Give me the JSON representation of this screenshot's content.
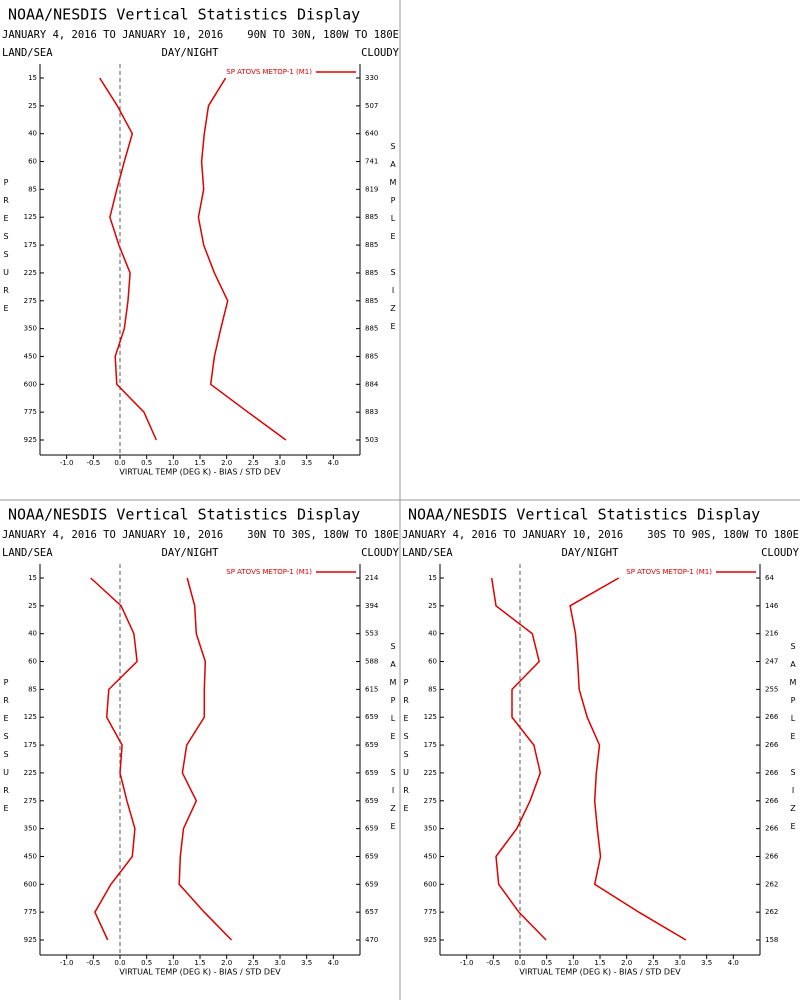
{
  "chart_data": [
    {
      "type": "line",
      "title": "NOAA/NESDIS Vertical Statistics Display",
      "date_range": "JANUARY 4, 2016 TO JANUARY 10, 2016",
      "region": "90N TO 30N, 180W TO 180E",
      "land_sea": "LAND/SEA",
      "day_night": "DAY/NIGHT",
      "cloudy": "CLOUDY",
      "y_label": "PRESSURE",
      "y2_label": "SAMPLE SIZE",
      "x_label": "VIRTUAL TEMP (DEG K) - BIAS / STD DEV",
      "categories": [
        15,
        25,
        40,
        60,
        85,
        125,
        175,
        225,
        275,
        350,
        450,
        600,
        775,
        925
      ],
      "sample_size": [
        330,
        507,
        640,
        741,
        819,
        885,
        885,
        885,
        885,
        885,
        885,
        884,
        883,
        503
      ],
      "series": [
        {
          "name": "SP ATOVS METOP-1 (M1)",
          "color": "#e00000",
          "bias": [
            -0.38,
            -0.05,
            0.23,
            0.08,
            -0.06,
            -0.19,
            -0.02,
            0.19,
            0.15,
            0.08,
            -0.09,
            -0.06,
            0.45,
            0.68
          ],
          "std_dev": [
            1.98,
            1.66,
            1.58,
            1.53,
            1.57,
            1.47,
            1.57,
            1.77,
            2.02,
            1.89,
            1.77,
            1.7,
            2.4,
            3.11
          ]
        }
      ],
      "xlim": [
        -1.5,
        4.5
      ],
      "xticks": [
        {
          "value": -1,
          "label": "-1.0"
        },
        -0.5,
        {
          "value": 0,
          "label": "0.0"
        },
        0.5,
        {
          "value": 1,
          "label": "1.0"
        },
        1.5,
        {
          "value": 2,
          "label": "2.0"
        },
        2.5,
        {
          "value": 3,
          "label": "3.0"
        },
        3.5,
        {
          "value": 4,
          "label": "4.0"
        }
      ]
    },
    {
      "type": "line",
      "title": "NOAA/NESDIS Vertical Statistics Display",
      "date_range": "JANUARY 4, 2016 TO JANUARY 10, 2016",
      "region": "30N TO 30S, 180W TO 180E",
      "land_sea": "LAND/SEA",
      "day_night": "DAY/NIGHT",
      "cloudy": "CLOUDY",
      "y_label": "PRESSURE",
      "y2_label": "SAMPLE SIZE",
      "x_label": "VIRTUAL TEMP (DEG K) - BIAS / STD DEV",
      "categories": [
        15,
        25,
        40,
        60,
        85,
        125,
        175,
        225,
        275,
        350,
        450,
        600,
        775,
        925
      ],
      "sample_size": [
        214,
        394,
        553,
        588,
        615,
        659,
        659,
        659,
        659,
        659,
        659,
        659,
        657,
        470
      ],
      "series": [
        {
          "name": "SP ATOVS METOP-1 (M1)",
          "color": "#e00000",
          "bias": [
            -0.55,
            0.02,
            0.26,
            0.32,
            -0.21,
            -0.25,
            0.04,
            0.0,
            0.13,
            0.28,
            0.23,
            -0.17,
            -0.47,
            -0.23
          ],
          "std_dev": [
            1.26,
            1.4,
            1.43,
            1.6,
            1.58,
            1.58,
            1.25,
            1.17,
            1.43,
            1.19,
            1.13,
            1.11,
            1.58,
            2.09
          ]
        }
      ],
      "xlim": [
        -1.5,
        4.5
      ],
      "xticks": [
        {
          "value": -1,
          "label": "-1.0"
        },
        -0.5,
        {
          "value": 0,
          "label": "0.0"
        },
        0.5,
        {
          "value": 1,
          "label": "1.0"
        },
        1.5,
        {
          "value": 2,
          "label": "2.0"
        },
        2.5,
        {
          "value": 3,
          "label": "3.0"
        },
        3.5,
        {
          "value": 4,
          "label": "4.0"
        }
      ]
    },
    {
      "type": "line",
      "title": "NOAA/NESDIS Vertical Statistics Display",
      "date_range": "JANUARY 4, 2016 TO JANUARY 10, 2016",
      "region": "30S TO 90S, 180W TO 180E",
      "land_sea": "LAND/SEA",
      "day_night": "DAY/NIGHT",
      "cloudy": "CLOUDY",
      "y_label": "PRESSURE",
      "y2_label": "SAMPLE SIZE",
      "x_label": "VIRTUAL TEMP (DEG K) - BIAS / STD DEV",
      "categories": [
        15,
        25,
        40,
        60,
        85,
        125,
        175,
        225,
        275,
        350,
        450,
        600,
        775,
        925
      ],
      "sample_size": [
        64,
        146,
        216,
        247,
        255,
        266,
        266,
        266,
        266,
        266,
        266,
        262,
        262,
        158
      ],
      "series": [
        {
          "name": "SP ATOVS METOP-1 (M1)",
          "color": "#e00000",
          "bias": [
            -0.53,
            -0.45,
            0.23,
            0.36,
            -0.15,
            -0.15,
            0.26,
            0.38,
            0.19,
            -0.06,
            -0.45,
            -0.4,
            -0.02,
            0.49
          ],
          "std_dev": [
            1.85,
            0.94,
            1.04,
            1.08,
            1.11,
            1.26,
            1.49,
            1.43,
            1.4,
            1.45,
            1.51,
            1.4,
            2.23,
            3.11
          ]
        }
      ],
      "xlim": [
        -1.5,
        4.5
      ],
      "xticks": [
        {
          "value": -1,
          "label": "-1.0"
        },
        -0.5,
        {
          "value": 0,
          "label": "0.0"
        },
        0.5,
        {
          "value": 1,
          "label": "1.0"
        },
        1.5,
        {
          "value": 2,
          "label": "2.0"
        },
        2.5,
        {
          "value": 3,
          "label": "3.0"
        },
        3.5,
        {
          "value": 4,
          "label": "4.0"
        }
      ]
    }
  ]
}
